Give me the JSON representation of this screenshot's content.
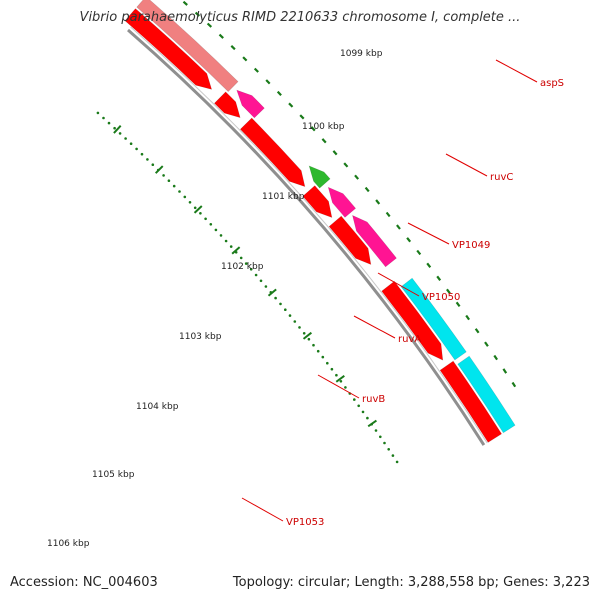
{
  "title": "Vibrio parahaemolyticus RIMD 2210633 chromosome I, complete ...",
  "footer": {
    "accession": "Accession: NC_004603",
    "topology": "Topology: circular; Length: 3,288,558 bp; Genes: 3,223"
  },
  "colors": {
    "backbone": "#8f8f8f",
    "forward_gene": "#ff0000",
    "reverse_gene": "#ff1493",
    "green_gene": "#2eb82e",
    "cyan_gene": "#00e5ee",
    "faded_gene": "#f08080",
    "tick": "#1a7a1a",
    "label": "#cc0000"
  },
  "kbp_ticks": [
    "1099 kbp",
    "1100 kbp",
    "1101 kbp",
    "1102 kbp",
    "1103 kbp",
    "1104 kbp",
    "1105 kbp",
    "1106 kbp"
  ],
  "genes": [
    {
      "name": "aspS"
    },
    {
      "name": "ruvC"
    },
    {
      "name": "VP1049"
    },
    {
      "name": "VP1050"
    },
    {
      "name": "ruvA"
    },
    {
      "name": "ruvB"
    },
    {
      "name": "VP1053"
    }
  ]
}
